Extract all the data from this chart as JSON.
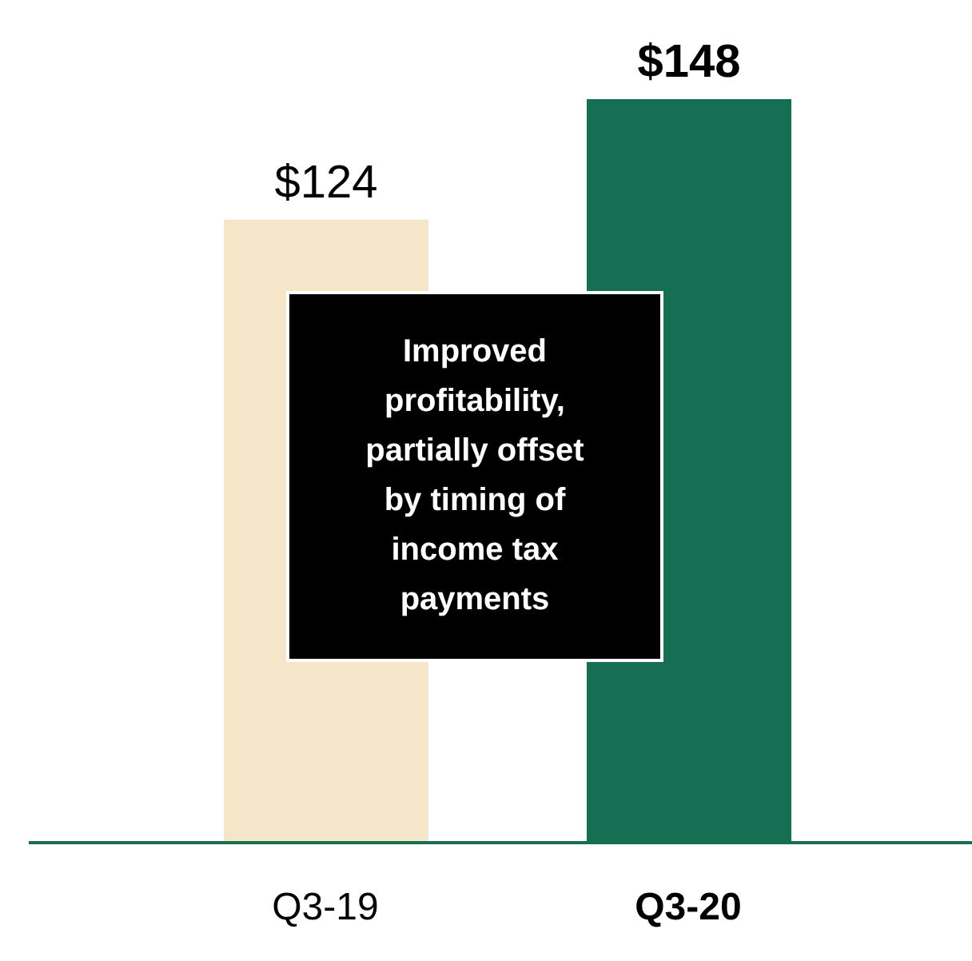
{
  "chart_data": {
    "type": "bar",
    "categories": [
      "Q3-19",
      "Q3-20"
    ],
    "values": [
      124,
      148
    ],
    "colors": [
      "#f5e5c9",
      "#166f52"
    ],
    "value_labels": [
      "$124",
      "$148"
    ],
    "annotations": [
      "Improved profitability, partially offset by timing of income tax payments"
    ]
  }
}
